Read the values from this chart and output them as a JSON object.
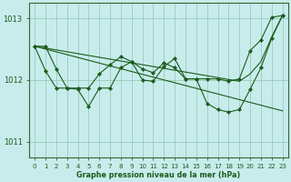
{
  "title": "Graphe pression niveau de la mer (hPa)",
  "bg_color": "#c8ecec",
  "grid_color": "#99ccbb",
  "line_color": "#1a5c1a",
  "xlim": [
    -0.5,
    23.5
  ],
  "ylim": [
    1010.75,
    1013.25
  ],
  "yticks": [
    1011,
    1012,
    1013
  ],
  "xticks": [
    0,
    1,
    2,
    3,
    4,
    5,
    6,
    7,
    8,
    9,
    10,
    11,
    12,
    13,
    14,
    15,
    16,
    17,
    18,
    19,
    20,
    21,
    22,
    23
  ],
  "series": [
    {
      "x": [
        0,
        1,
        2,
        3,
        4,
        5,
        6,
        7,
        8,
        9,
        10,
        11,
        12,
        13,
        14,
        15,
        16,
        17,
        18,
        19,
        20,
        21,
        22,
        23
      ],
      "y": [
        1012.55,
        1012.52,
        1012.49,
        1012.46,
        1012.43,
        1012.4,
        1012.37,
        1012.34,
        1012.31,
        1012.28,
        1012.25,
        1012.22,
        1012.19,
        1012.16,
        1012.13,
        1012.1,
        1012.07,
        1012.04,
        1012.01,
        1011.98,
        1012.1,
        1012.3,
        1012.7,
        1013.05
      ],
      "has_markers": false
    },
    {
      "x": [
        0,
        23
      ],
      "y": [
        1012.55,
        1011.5
      ],
      "has_markers": false
    },
    {
      "x": [
        0,
        1,
        2,
        3,
        4,
        5,
        6,
        7,
        8,
        9,
        10,
        11,
        12,
        13,
        14,
        15,
        16,
        17,
        18,
        19,
        20,
        21,
        22,
        23
      ],
      "y": [
        1012.55,
        1012.15,
        1011.87,
        1011.87,
        1011.85,
        1011.57,
        1011.87,
        1011.87,
        1012.2,
        1012.3,
        1012.0,
        1011.98,
        1012.22,
        1012.35,
        1012.02,
        1012.02,
        1011.62,
        1011.52,
        1011.48,
        1011.52,
        1011.85,
        1012.2,
        1012.68,
        1013.05
      ],
      "has_markers": true
    },
    {
      "x": [
        0,
        1,
        2,
        3,
        4,
        5,
        6,
        7,
        8,
        9,
        10,
        11,
        12,
        13,
        14,
        15,
        16,
        17,
        18,
        19,
        20,
        21,
        22,
        23
      ],
      "y": [
        1012.55,
        1012.55,
        1012.18,
        1011.87,
        1011.87,
        1011.87,
        1012.1,
        1012.25,
        1012.38,
        1012.3,
        1012.18,
        1012.12,
        1012.28,
        1012.2,
        1012.02,
        1012.02,
        1012.02,
        1012.02,
        1011.98,
        1012.02,
        1012.48,
        1012.65,
        1013.02,
        1013.05
      ],
      "has_markers": true
    }
  ]
}
